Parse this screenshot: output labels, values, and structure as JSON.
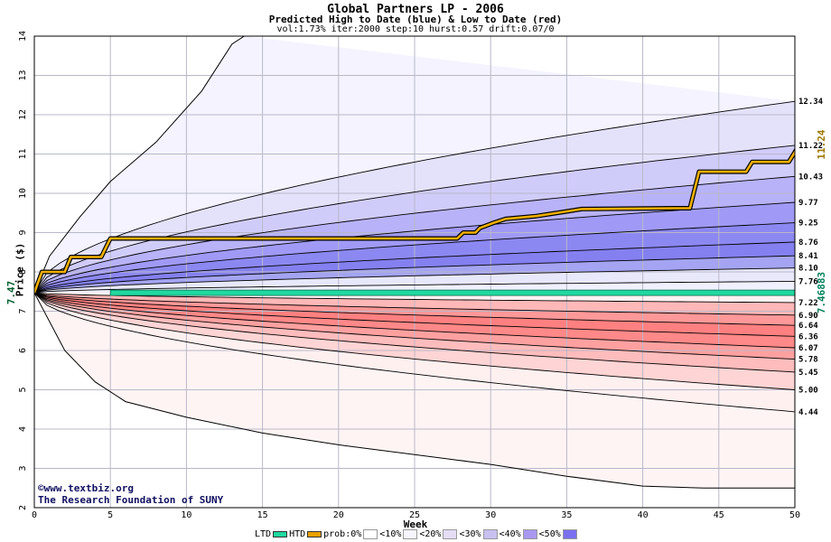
{
  "header": {
    "title": "Global Partners LP - 2006",
    "subtitle": "Predicted High to Date (blue) &  Low to Date (red)",
    "params": "vol:1.73% iter:2000 step:10 hurst:0.57 drift:0.07/0"
  },
  "credit": {
    "line1": "©www.textbiz.org",
    "line2": "The Research Foundation of SUNY"
  },
  "legend": [
    {
      "label": "LTD",
      "color": "#20d8a0",
      "kind": "line"
    },
    {
      "label": "HTD",
      "color": "#e8a000",
      "kind": "line"
    },
    {
      "label": "prob:0%",
      "color": "#ffffff",
      "kind": "box"
    },
    {
      "label": "<10%",
      "color": "#f6f4ff",
      "kind": "box"
    },
    {
      "label": "<20%",
      "color": "#e4ddf4",
      "kind": "box"
    },
    {
      "label": "<30%",
      "color": "#c8c0f0",
      "kind": "box"
    },
    {
      "label": "<40%",
      "color": "#a898f0",
      "kind": "box"
    },
    {
      "label": "<50%",
      "color": "#7a70f0",
      "kind": "box"
    }
  ],
  "chart_data": {
    "type": "area",
    "title": "Global Partners LP - 2006",
    "subtitle": "Predicted High to Date (blue) &  Low to Date (red)",
    "xlabel": "Week",
    "ylabel": "Price ($)",
    "xlim": [
      0,
      50
    ],
    "ylim": [
      2,
      14
    ],
    "x_ticks": [
      0,
      5,
      10,
      15,
      20,
      25,
      30,
      35,
      40,
      45,
      50
    ],
    "y_ticks": [
      2,
      3,
      4,
      5,
      6,
      7,
      8,
      9,
      10,
      11,
      12,
      13,
      14
    ],
    "grid": true,
    "start_price": 7.47,
    "start_label": "7.47",
    "high_bands": [
      {
        "end": 12.34,
        "label": "12.34",
        "color": "#f4f3ff"
      },
      {
        "end": 11.22,
        "label": "11.22",
        "color": "#e4e2fb"
      },
      {
        "end": 10.43,
        "label": "10.43",
        "color": "#d0ccfa"
      },
      {
        "end": 9.77,
        "label": "9.77",
        "color": "#b8b2f8"
      },
      {
        "end": 9.25,
        "label": "9.25",
        "color": "#a09af6"
      },
      {
        "end": 8.76,
        "label": "8.76",
        "color": "#8c88f2"
      },
      {
        "end": 8.41,
        "label": "8.41",
        "color": "#8480f0"
      },
      {
        "end": 8.1,
        "label": "8.10",
        "color": "#a4a4f2"
      },
      {
        "end": 7.76,
        "label": "7.76",
        "color": "#e8e8fb"
      }
    ],
    "low_bands": [
      {
        "end": 7.22,
        "label": "7.22",
        "color": "#fff2f2"
      },
      {
        "end": 6.9,
        "label": "6.90",
        "color": "#ffb8b8"
      },
      {
        "end": 6.64,
        "label": "6.64",
        "color": "#ff9898"
      },
      {
        "end": 6.36,
        "label": "6.36",
        "color": "#ff8080"
      },
      {
        "end": 6.07,
        "label": "6.07",
        "color": "#ff8888"
      },
      {
        "end": 5.78,
        "label": "5.78",
        "color": "#ffa0a0"
      },
      {
        "end": 5.45,
        "label": "5.45",
        "color": "#ffbcbc"
      },
      {
        "end": 5.0,
        "label": "5.00",
        "color": "#ffd4d4"
      },
      {
        "end": 4.44,
        "label": "4.44",
        "color": "#fff0f0"
      }
    ],
    "outer_high": [
      [
        0,
        7.47
      ],
      [
        1,
        8.4
      ],
      [
        3,
        9.4
      ],
      [
        5,
        10.3
      ],
      [
        8,
        11.3
      ],
      [
        11,
        12.6
      ],
      [
        13,
        13.8
      ],
      [
        13.8,
        14
      ]
    ],
    "outer_low": [
      [
        0,
        7.47
      ],
      [
        2,
        6.0
      ],
      [
        4,
        5.2
      ],
      [
        6,
        4.7
      ],
      [
        10,
        4.3
      ],
      [
        15,
        3.9
      ],
      [
        20,
        3.6
      ],
      [
        30,
        3.1
      ],
      [
        35,
        2.8
      ],
      [
        40,
        2.55
      ],
      [
        44,
        2.5
      ],
      [
        50,
        2.5
      ]
    ],
    "htd_series": [
      [
        0,
        7.47
      ],
      [
        0.5,
        8.0
      ],
      [
        2,
        8.0
      ],
      [
        2.4,
        8.38
      ],
      [
        4.4,
        8.38
      ],
      [
        5,
        8.85
      ],
      [
        6,
        8.85
      ],
      [
        27.8,
        8.85
      ],
      [
        28.2,
        9.0
      ],
      [
        29,
        9.0
      ],
      [
        29.3,
        9.12
      ],
      [
        30.2,
        9.25
      ],
      [
        31,
        9.35
      ],
      [
        33,
        9.42
      ],
      [
        34,
        9.48
      ],
      [
        36,
        9.6
      ],
      [
        42,
        9.62
      ],
      [
        43.1,
        9.62
      ],
      [
        43.7,
        10.55
      ],
      [
        46.8,
        10.55
      ],
      [
        47.2,
        10.8
      ],
      [
        49.6,
        10.8
      ],
      [
        50.3,
        11.24
      ]
    ],
    "htd_label": "11.24",
    "ltd_value": 7.46883,
    "ltd_label": "7.46883"
  }
}
